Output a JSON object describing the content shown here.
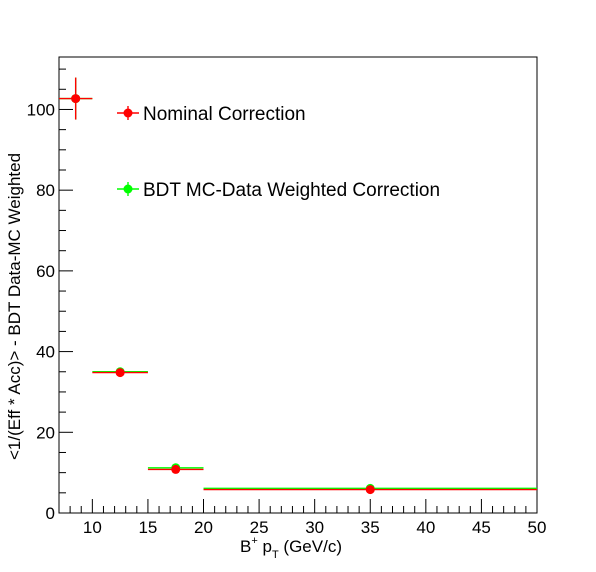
{
  "chart_data": {
    "type": "scatter",
    "xlabel": "B⁺ pₜ (GeV/c)",
    "xlabel_parts": {
      "base": "B",
      "sup": "+",
      "mid": " p",
      "sub": "T",
      "tail": " (GeV/c)"
    },
    "ylabel": "<1/(Eff * Acc)> - BDT Data-MC Weighted",
    "xlim": [
      7,
      50
    ],
    "ylim": [
      0,
      113
    ],
    "xticks": [
      10,
      15,
      20,
      25,
      30,
      35,
      40,
      45,
      50
    ],
    "yticks": [
      0,
      20,
      40,
      60,
      80,
      100
    ],
    "grid": false,
    "legend_placement": "top-left inside",
    "series": [
      {
        "name": "Nominal Correction",
        "color": "#ff0000",
        "points": [
          {
            "x": 8.5,
            "xerr": 1.5,
            "y": 102.7,
            "yerr": 5.2
          },
          {
            "x": 12.5,
            "xerr": 2.5,
            "y": 34.8,
            "yerr": 0.8
          },
          {
            "x": 17.5,
            "xerr": 2.5,
            "y": 10.8,
            "yerr": 0.4
          },
          {
            "x": 35,
            "xerr": 15,
            "y": 5.8,
            "yerr": 0.2
          }
        ]
      },
      {
        "name": "BDT MC-Data Weighted Correction",
        "color": "#00ff00",
        "points": [
          {
            "x": 8.5,
            "xerr": 1.5,
            "y": 102.7,
            "yerr": 5.2
          },
          {
            "x": 12.5,
            "xerr": 2.5,
            "y": 35.0,
            "yerr": 0.8
          },
          {
            "x": 17.5,
            "xerr": 2.5,
            "y": 11.2,
            "yerr": 0.4
          },
          {
            "x": 35,
            "xerr": 15,
            "y": 6.1,
            "yerr": 0.2
          }
        ]
      }
    ]
  }
}
